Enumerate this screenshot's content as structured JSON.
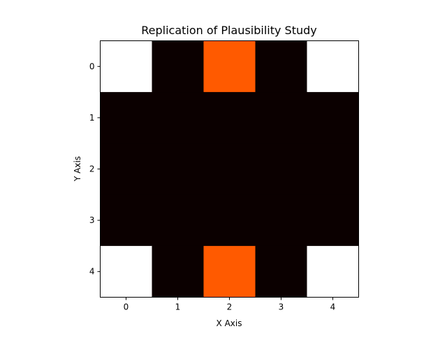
{
  "chart_data": {
    "type": "heatmap",
    "title": "Replication of Plausibility Study",
    "xlabel": "X Axis",
    "ylabel": "Y Axis",
    "x_ticks": [
      "0",
      "1",
      "2",
      "3",
      "4"
    ],
    "y_ticks": [
      "0",
      "1",
      "2",
      "3",
      "4"
    ],
    "xlim": [
      -0.5,
      4.5
    ],
    "ylim": [
      4.5,
      -0.5
    ],
    "colormap": "hot",
    "colorbar": false,
    "grid": false,
    "matrix": [
      [
        1.0,
        0.0,
        0.5,
        0.0,
        1.0
      ],
      [
        0.0,
        0.0,
        0.0,
        0.0,
        0.0
      ],
      [
        0.0,
        0.0,
        0.0,
        0.0,
        0.0
      ],
      [
        0.0,
        0.0,
        0.0,
        0.0,
        0.0
      ],
      [
        1.0,
        0.0,
        0.5,
        0.0,
        1.0
      ]
    ],
    "colors": {
      "low": "#0b0000",
      "mid": "#ff5a00",
      "high": "#ffffff"
    }
  }
}
